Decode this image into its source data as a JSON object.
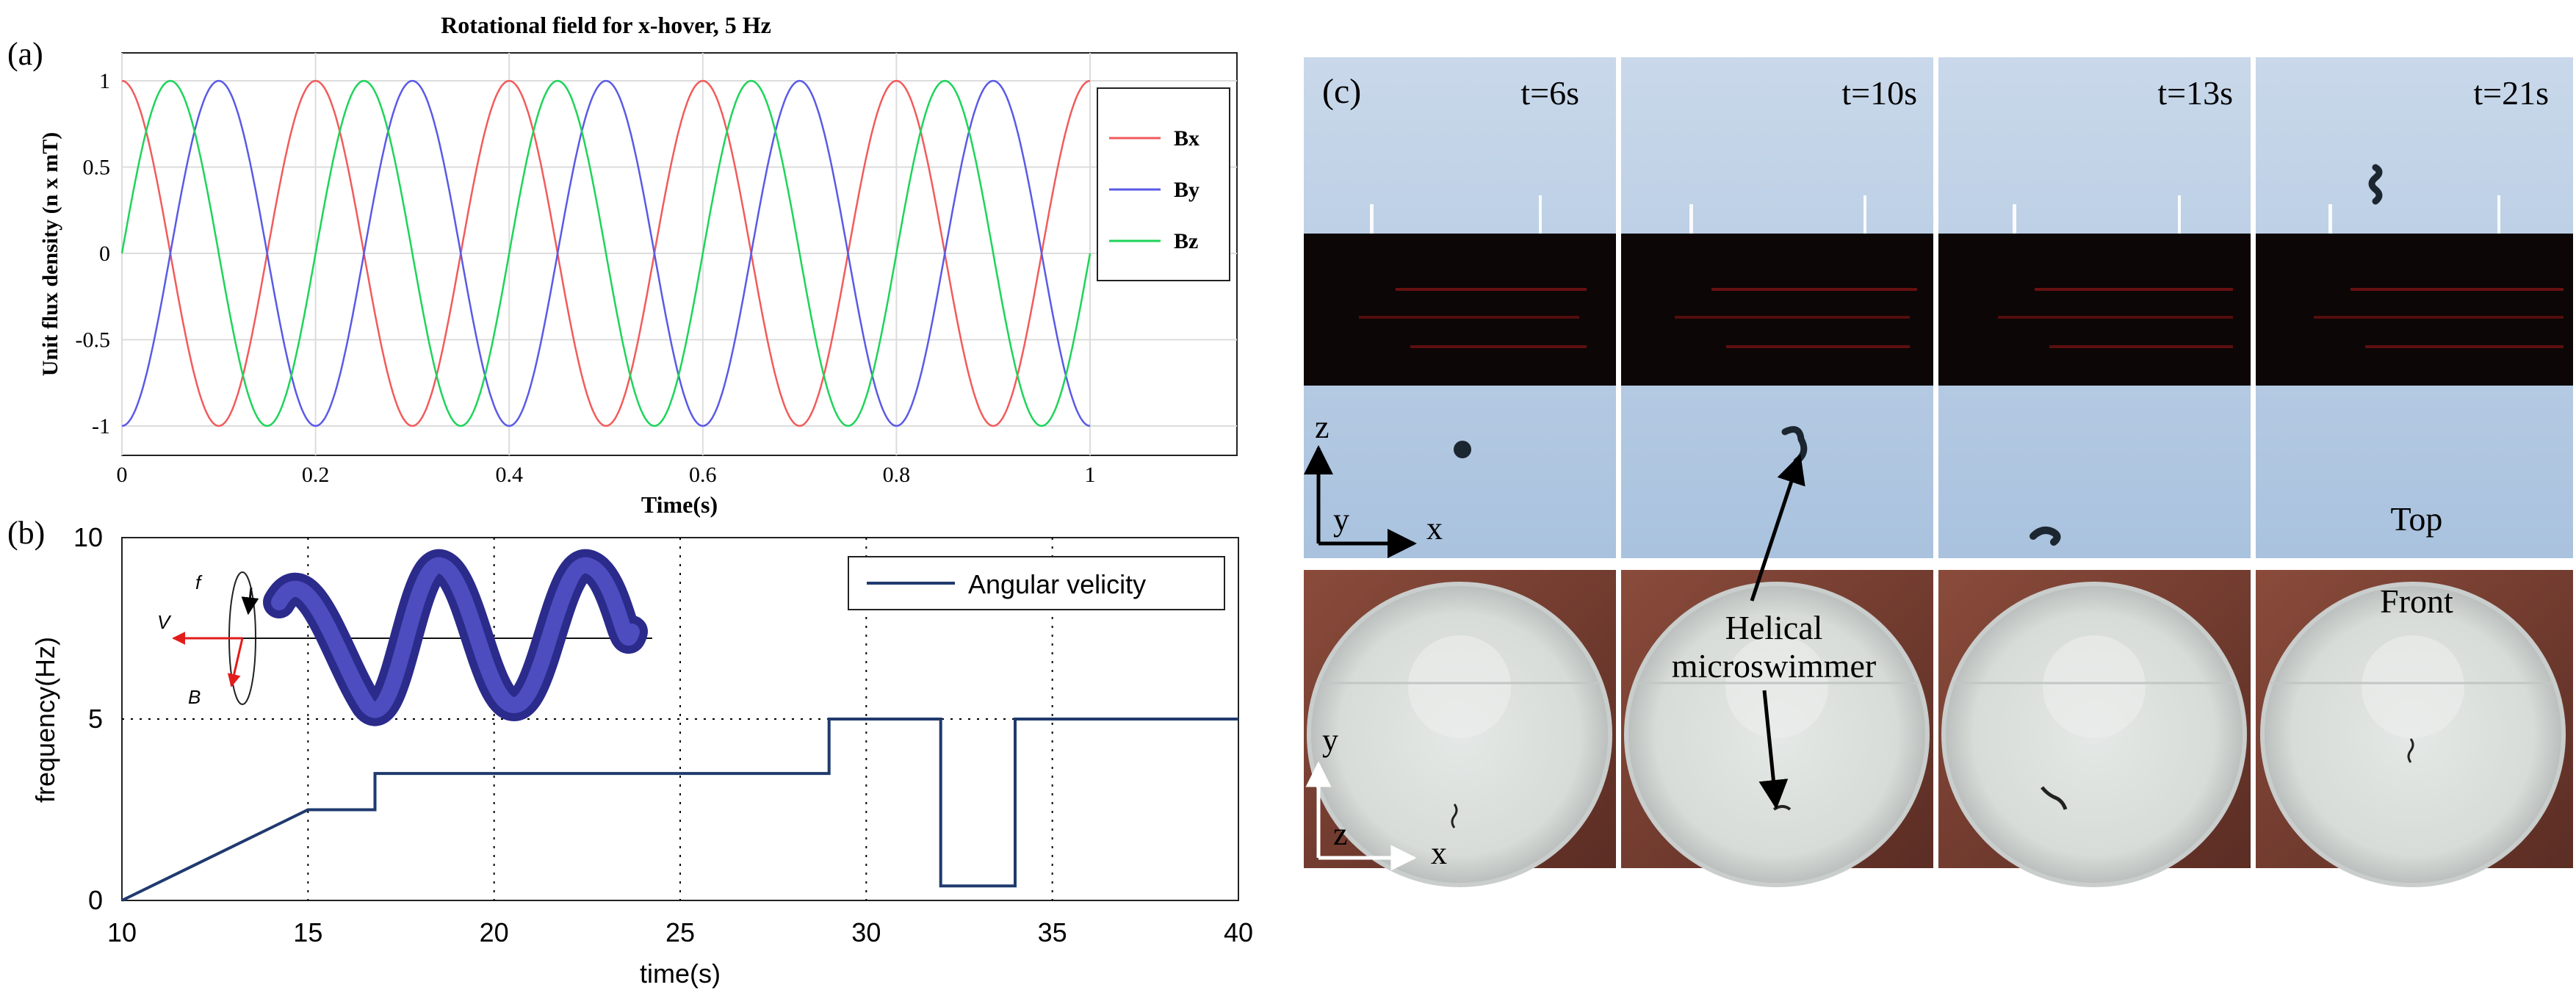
{
  "chart_data": [
    {
      "panel_label": "(a)",
      "type": "line",
      "title": "Rotational field for x-hover, 5 Hz",
      "xlabel": "Time(s)",
      "ylabel": "Unit flux density (n x mT)",
      "xlim": [
        0,
        1
      ],
      "ylim": [
        -1,
        1
      ],
      "xticks": [
        "0",
        "0.2",
        "0.4",
        "0.6",
        "0.8",
        "1"
      ],
      "yticks": [
        "1",
        "0.5",
        "0",
        "-0.5",
        "-1"
      ],
      "grid": true,
      "legend_position": "right",
      "frequency_hz": 5,
      "series": [
        {
          "name": "Bx",
          "color": "#f25b5b",
          "function": "cos",
          "phase_deg": 0
        },
        {
          "name": "By",
          "color": "#5a5ae6",
          "function": "cos",
          "phase_deg": 180
        },
        {
          "name": "Bz",
          "color": "#1ed45a",
          "function": "sin",
          "phase_deg": 0
        }
      ]
    },
    {
      "panel_label": "(b)",
      "type": "line",
      "xlabel": "time(s)",
      "ylabel": "frequency(Hz)",
      "xlim": [
        10,
        40
      ],
      "ylim": [
        0,
        10
      ],
      "xticks": [
        "10",
        "15",
        "20",
        "25",
        "30",
        "35",
        "40"
      ],
      "yticks": [
        "0",
        "5",
        "10"
      ],
      "grid": true,
      "legend_position": "top-right",
      "reference_line_y": 5,
      "series": [
        {
          "name": "Angular velicity",
          "color": "#1f3a6e",
          "x": [
            10,
            15,
            15,
            16.8,
            16.8,
            29,
            29,
            32,
            32,
            34,
            34,
            40
          ],
          "y": [
            0,
            2.5,
            2.5,
            2.5,
            3.5,
            3.5,
            5,
            5,
            0.4,
            0.4,
            5,
            5
          ]
        }
      ],
      "inset": {
        "v_label": "V",
        "f_label": "f",
        "b_label": "B"
      }
    }
  ],
  "panel_c": {
    "label": "(c)",
    "times": [
      "t=6s",
      "t=10s",
      "t=13s",
      "t=21s"
    ],
    "top_view_label": "Top",
    "front_view_label": "Front",
    "annotation": "Helical\nmicroswimmer",
    "top_axes": {
      "vertical": "z",
      "depth": "y",
      "horizontal": "x"
    },
    "front_axes": {
      "vertical": "y",
      "depth": "z",
      "horizontal": "x"
    }
  }
}
